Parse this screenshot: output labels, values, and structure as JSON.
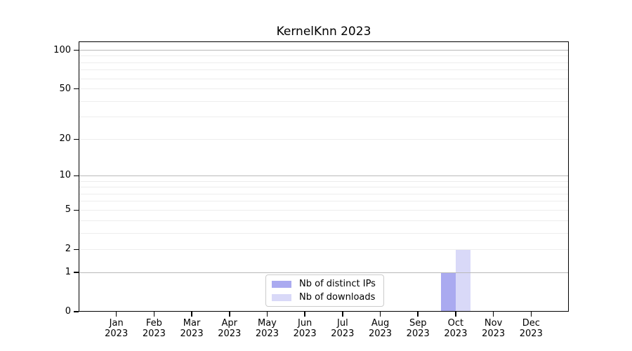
{
  "title": "KernelKnn 2023",
  "chart_data": {
    "type": "bar",
    "title": "KernelKnn 2023",
    "categories": [
      "Jan",
      "Feb",
      "Mar",
      "Apr",
      "May",
      "Jun",
      "Jul",
      "Aug",
      "Sep",
      "Oct",
      "Nov",
      "Dec"
    ],
    "year_label": "2023",
    "series": [
      {
        "name": "Nb of distinct IPs",
        "color": "#aaaaf0",
        "values": [
          0,
          0,
          0,
          0,
          0,
          0,
          0,
          0,
          0,
          1,
          0,
          0
        ]
      },
      {
        "name": "Nb of downloads",
        "color": "#d9d9f8",
        "values": [
          0,
          0,
          0,
          0,
          0,
          0,
          0,
          0,
          0,
          2,
          0,
          0
        ]
      }
    ],
    "xlabel": "",
    "ylabel": "",
    "y_scale": "log1p",
    "ylim": [
      0,
      117
    ],
    "y_ticks": [
      0,
      1,
      2,
      5,
      10,
      20,
      50,
      100
    ],
    "y_major_gridlines": [
      1,
      10,
      100
    ],
    "y_minor_gridlines": [
      2,
      3,
      4,
      5,
      6,
      7,
      8,
      9,
      20,
      30,
      40,
      50,
      60,
      70,
      80,
      90
    ],
    "grid": "horizontal",
    "legend_position": "lower center"
  },
  "colors": {
    "background": "#ffffff",
    "spine": "#000000",
    "major_grid": "#b9b9b9",
    "minor_grid": "#ededed",
    "text": "#000000",
    "legend_border": "#cccccc"
  }
}
